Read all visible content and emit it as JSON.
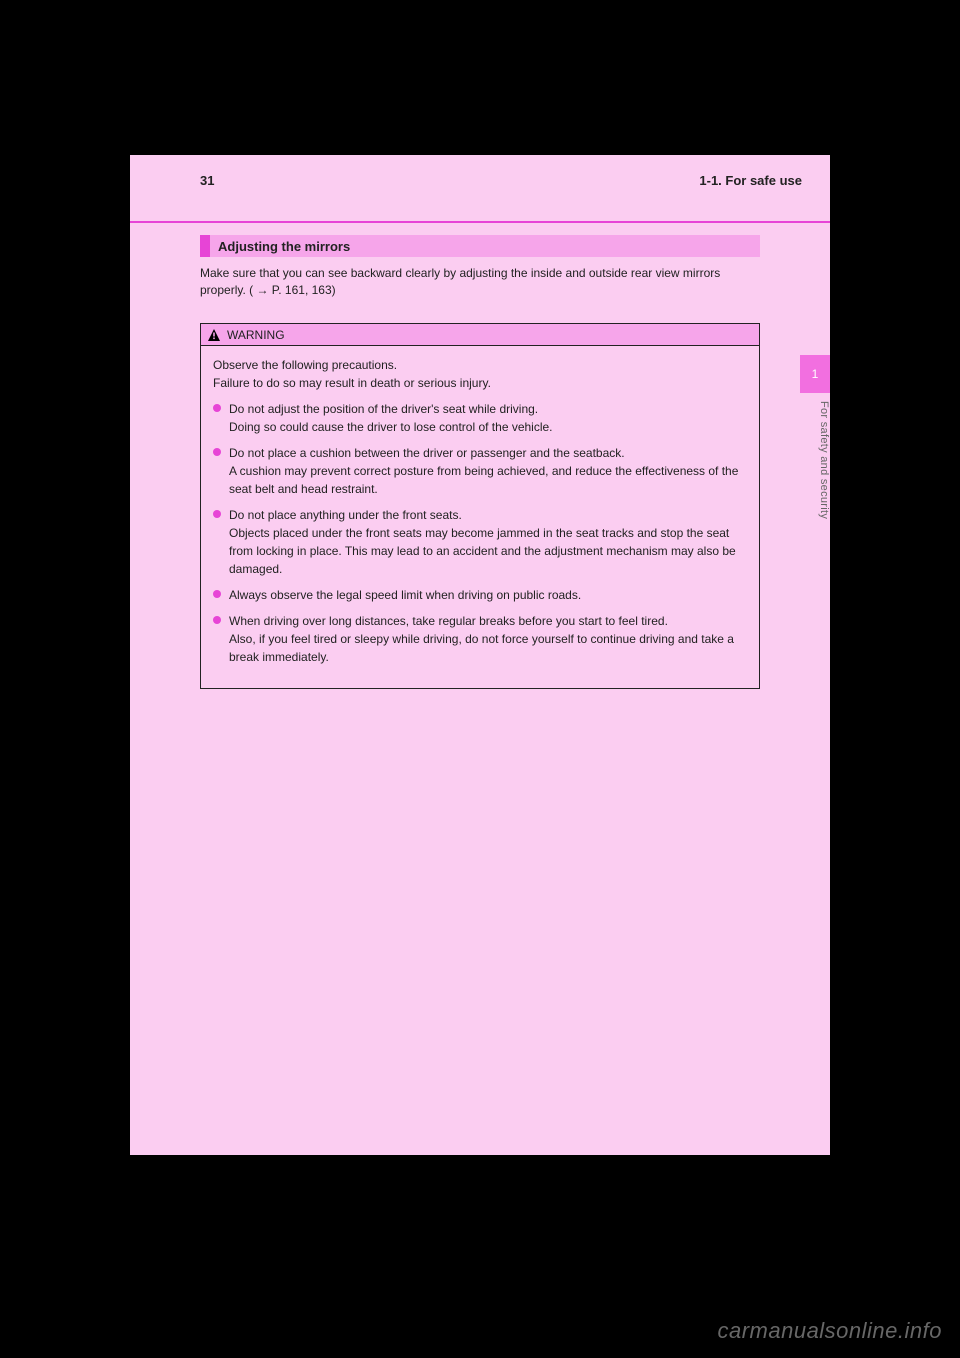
{
  "header": {
    "page_number": "31",
    "breadcrumb": "1-1. For safe use"
  },
  "side": {
    "tab_number": "1",
    "label": "For safety and security"
  },
  "section": {
    "title": "Adjusting the mirrors",
    "intro": "Make sure that you can see backward clearly by adjusting the inside and outside rear view mirrors properly. ( → P. 161, 163)"
  },
  "warning": {
    "label": "WARNING",
    "intro": "Observe the following precautions.\nFailure to do so may result in death or serious injury.",
    "bullets": [
      "Do not adjust the position of the driver's seat while driving.\nDoing so could cause the driver to lose control of the vehicle.",
      "Do not place a cushion between the driver or passenger and the seatback.\nA cushion may prevent correct posture from being achieved, and reduce the effectiveness of the seat belt and head restraint.",
      "Do not place anything under the front seats.\nObjects placed under the front seats may become jammed in the seat tracks and stop the seat from locking in place. This may lead to an accident and the adjustment mechanism may also be damaged.",
      "Always observe the legal speed limit when driving on public roads.",
      "When driving over long distances, take regular breaks before you start to feel tired.\nAlso, if you feel tired or sleepy while driving, do not force yourself to continue driving and take a break immediately."
    ]
  },
  "watermark": "carmanualsonline.info",
  "colors": {
    "page_bg": "#fbcdf1",
    "accent": "#e744d6",
    "bar_fill": "#f6a5ea",
    "tab_bg": "#f26fe0",
    "text": "#222222"
  }
}
